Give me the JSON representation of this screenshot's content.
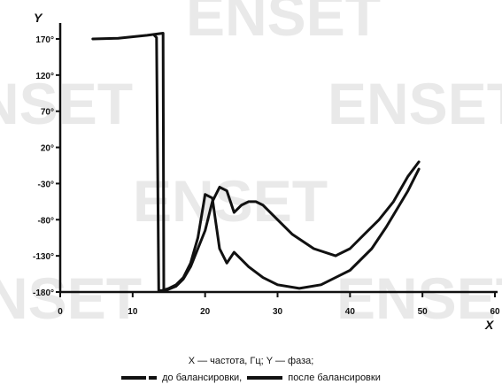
{
  "watermark": "ENSET",
  "chart_data": {
    "type": "line",
    "xlabel": "X",
    "ylabel": "Y",
    "xlim": [
      0,
      60
    ],
    "ylim": [
      -180,
      180
    ],
    "x_ticks": [
      "0",
      "10",
      "20",
      "30",
      "40",
      "50",
      "60"
    ],
    "y_ticks": [
      "170°",
      "120°",
      "70°",
      "20°",
      "-30°",
      "-80°",
      "-130°",
      "-180°"
    ],
    "grid": false,
    "legend": {
      "line1": "X — частота, Гц; Y — фаза;",
      "before": "до балансировки,",
      "after": "после балансировки"
    },
    "series": [
      {
        "name": "до балансировки",
        "style": "dashed",
        "x": [
          4.5,
          8,
          12,
          14.2,
          14.3,
          14.6,
          15,
          16,
          17,
          18,
          19,
          20,
          21,
          22,
          23,
          24,
          25,
          26,
          27,
          28,
          30,
          32,
          35,
          38,
          40,
          42,
          44,
          46,
          48,
          49.5
        ],
        "y": [
          170,
          171,
          175,
          178,
          -178,
          -178,
          -176,
          -172,
          -162,
          -145,
          -120,
          -95,
          -55,
          -35,
          -40,
          -70,
          -60,
          -55,
          -55,
          -60,
          -80,
          -100,
          -120,
          -130,
          -120,
          -100,
          -80,
          -55,
          -20,
          0
        ]
      },
      {
        "name": "после балансировки",
        "style": "solid",
        "x": [
          13,
          13.3,
          13.6,
          14,
          15,
          16,
          17,
          18,
          19,
          20,
          21,
          22,
          23,
          24,
          25,
          26,
          28,
          30,
          33,
          36,
          40,
          43,
          45,
          48,
          49.5
        ],
        "y": [
          175,
          172,
          -178,
          -178,
          -175,
          -170,
          -160,
          -140,
          -105,
          -45,
          -50,
          -120,
          -140,
          -125,
          -135,
          -145,
          -160,
          -170,
          -175,
          -170,
          -150,
          -120,
          -90,
          -40,
          -10
        ]
      }
    ]
  }
}
